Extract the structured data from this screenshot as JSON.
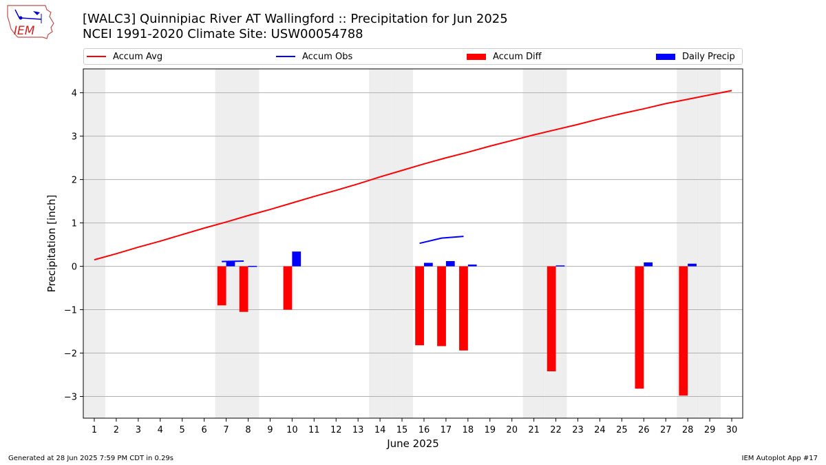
{
  "header": {
    "title_line1": "[WALC3] Quinnipiac River  AT Wallingford :: Precipitation for Jun 2025",
    "title_line2": "NCEI 1991-2020 Climate Site: USW00054788",
    "logo_text": "IEM"
  },
  "legend": {
    "accum_avg": "Accum Avg",
    "accum_obs": "Accum Obs",
    "accum_diff": "Accum Diff",
    "daily_precip": "Daily Precip"
  },
  "colors": {
    "accum_avg": "#ff0000",
    "accum_obs": "#0000ff",
    "accum_diff": "#ff0000",
    "daily_precip": "#0000ff",
    "weekend_shade": "#eeeeee",
    "grid": "#b0b0b0"
  },
  "chart_data": {
    "type": "bar",
    "xlabel": "June 2025",
    "ylabel": "Precipitation [inch]",
    "xlim": [
      0.5,
      30.5
    ],
    "ylim": [
      -3.5,
      4.55
    ],
    "grid": "horizontal",
    "legend_position": "top",
    "x_ticks": [
      1,
      2,
      3,
      4,
      5,
      6,
      7,
      8,
      9,
      10,
      11,
      12,
      13,
      14,
      15,
      16,
      17,
      18,
      19,
      20,
      21,
      22,
      23,
      24,
      25,
      26,
      27,
      28,
      29,
      30
    ],
    "y_ticks": [
      -3,
      -2,
      -1,
      0,
      1,
      2,
      3,
      4
    ],
    "y_tick_labels": [
      "−3",
      "−2",
      "−1",
      "0",
      "1",
      "2",
      "3",
      "4"
    ],
    "weekend_days": [
      1,
      7,
      8,
      14,
      15,
      21,
      22,
      28,
      29
    ],
    "accum_avg": {
      "name": "Accum Avg",
      "x": [
        1,
        2,
        3,
        4,
        5,
        6,
        7,
        8,
        9,
        10,
        11,
        12,
        13,
        14,
        15,
        16,
        17,
        18,
        19,
        20,
        21,
        22,
        23,
        24,
        25,
        26,
        27,
        28,
        29,
        30
      ],
      "values": [
        0.15,
        0.29,
        0.44,
        0.58,
        0.73,
        0.88,
        1.02,
        1.17,
        1.31,
        1.46,
        1.61,
        1.75,
        1.9,
        2.06,
        2.21,
        2.36,
        2.5,
        2.63,
        2.77,
        2.9,
        3.03,
        3.15,
        3.27,
        3.4,
        3.52,
        3.63,
        3.75,
        3.85,
        3.95,
        4.05
      ]
    },
    "accum_obs": {
      "name": "Accum Obs",
      "x": [
        7,
        8,
        16,
        17,
        18
      ],
      "values": [
        0.11,
        0.12,
        0.53,
        0.65,
        0.69
      ]
    },
    "accum_diff": {
      "name": "Accum Diff",
      "x": [
        7,
        8,
        10,
        16,
        17,
        18,
        22,
        26,
        28
      ],
      "values": [
        -0.9,
        -1.05,
        -1.0,
        -1.82,
        -1.84,
        -1.94,
        -2.42,
        -2.82,
        -2.98
      ]
    },
    "daily_precip": {
      "name": "Daily Precip",
      "x": [
        7,
        8,
        10,
        16,
        17,
        18,
        22,
        26,
        28
      ],
      "values": [
        0.11,
        0.01,
        0.34,
        0.08,
        0.12,
        0.04,
        0.02,
        0.09,
        0.06
      ]
    }
  },
  "footer": {
    "left": "Generated at 28 Jun 2025 7:59 PM CDT in 0.29s",
    "right": "IEM Autoplot App #17"
  }
}
